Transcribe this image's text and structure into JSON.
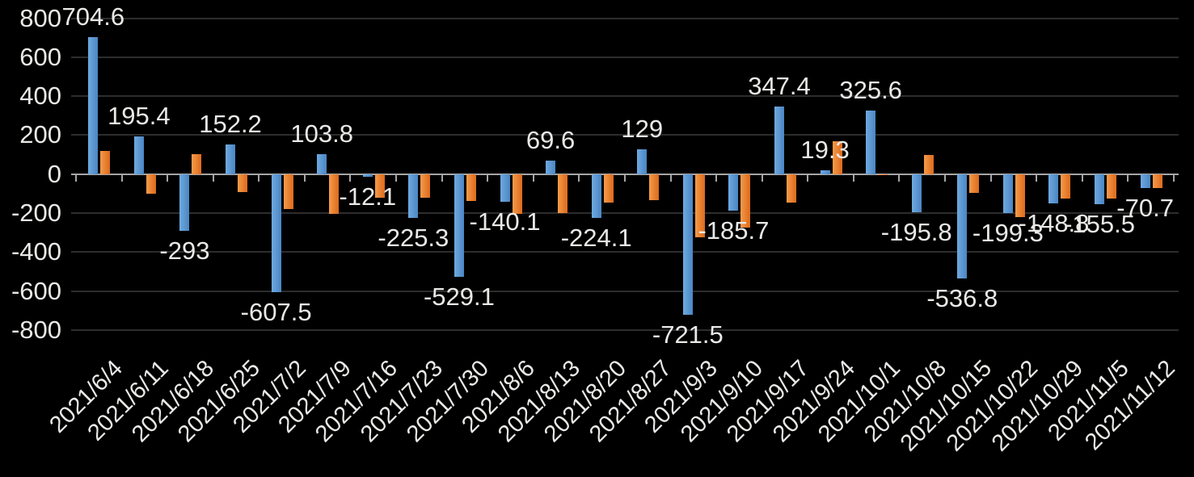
{
  "chart_data": {
    "type": "bar",
    "title": "",
    "categories": [
      "2021/6/4",
      "2021/6/11",
      "2021/6/18",
      "2021/6/25",
      "2021/7/2",
      "2021/7/9",
      "2021/7/16",
      "2021/7/23",
      "2021/7/30",
      "2021/8/6",
      "2021/8/13",
      "2021/8/20",
      "2021/8/27",
      "2021/9/3",
      "2021/9/10",
      "2021/9/17",
      "2021/9/24",
      "2021/10/1",
      "2021/10/8",
      "2021/10/15",
      "2021/10/22",
      "2021/10/29",
      "2021/11/5",
      "2021/11/12"
    ],
    "series": [
      {
        "name": "blue-series",
        "color_start": "#6FA9DF",
        "color_end": "#4A86C4",
        "values": [
          704.6,
          195.4,
          -293,
          152.2,
          -607.5,
          103.8,
          -12.1,
          -225.3,
          -529.1,
          -140.1,
          69.6,
          -224.1,
          129,
          -721.5,
          -185.7,
          347.4,
          19.3,
          325.6,
          -195.8,
          -536.8,
          -199.3,
          -148.8,
          -155.5,
          -70.7
        ],
        "labels": [
          "704.6",
          "195.4",
          "-293",
          "152.2",
          "-607.5",
          "103.8",
          "-12.1",
          "-225.3",
          "-529.1",
          "-140.1",
          "69.6",
          "-224.1",
          "129",
          "-721.5",
          "-185.7",
          "347.4",
          "19.3",
          "325.6",
          "-195.8",
          "-536.8",
          "-199.3",
          "-148.8",
          "-155.5",
          "-70.7"
        ]
      },
      {
        "name": "orange-series",
        "color_start": "#F49B4A",
        "color_end": "#DE6A1C",
        "values": [
          120,
          -100,
          104,
          -93,
          -178,
          -205,
          -120,
          -120,
          -138,
          -205,
          -200,
          -148,
          -135,
          -325,
          -275,
          -145,
          170,
          -6,
          100,
          -98,
          -220,
          -125,
          -125,
          -73
        ],
        "labels": null
      }
    ],
    "ylim": [
      -800,
      800
    ],
    "y_ticks": [
      800,
      600,
      400,
      200,
      0,
      -200,
      -400,
      -600,
      -800
    ],
    "y_tick_labels": [
      "800",
      "600",
      "400",
      "200",
      "0",
      "-200",
      "-400",
      "-600",
      "-800"
    ],
    "grid": true,
    "legend": "none",
    "background": "#000000",
    "text_color": "#E9E9E7",
    "gridline_color": "#2D2D2D",
    "axis_color": "#A6A6A6"
  }
}
